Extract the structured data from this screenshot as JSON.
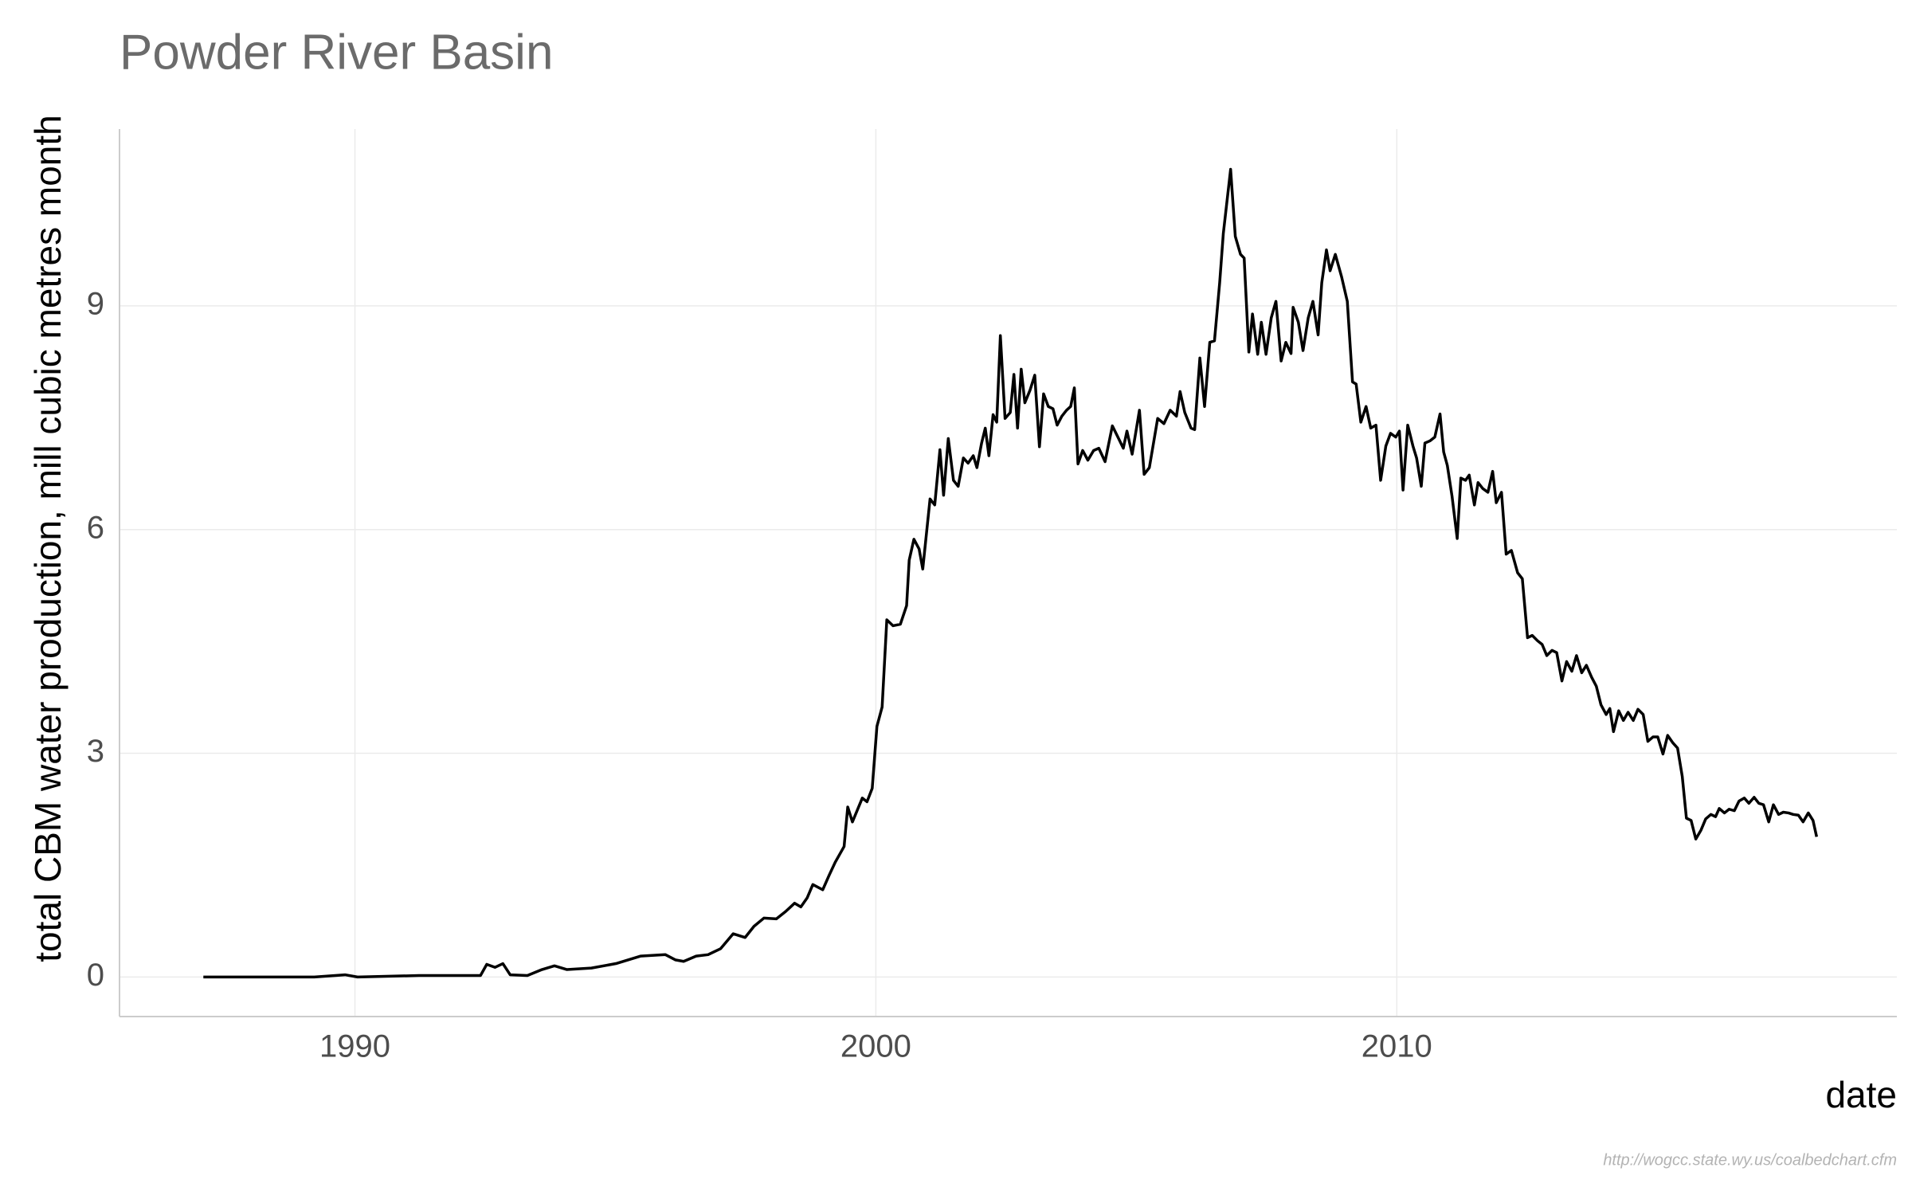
{
  "chart_data": {
    "type": "line",
    "title": "Powder River Basin",
    "x_label": "date",
    "y_label": "total CBM water production, mill cubic metres month",
    "caption": "http://wogcc.state.wy.us/coalbedchart.cfm",
    "color": "#000000",
    "grid": true,
    "xlim": [
      1985.48,
      2019.6
    ],
    "ylim": [
      -0.53,
      11.37
    ],
    "xticks": [
      1990,
      2000,
      2010
    ],
    "yticks": [
      0,
      3,
      6,
      9
    ],
    "x": [
      1987.09,
      1989.22,
      1989.81,
      1990.05,
      1991.23,
      1992.41,
      1992.53,
      1992.69,
      1992.84,
      1992.98,
      1993.31,
      1993.59,
      1993.83,
      1994.07,
      1994.54,
      1995.01,
      1995.48,
      1995.96,
      1996.15,
      1996.31,
      1996.55,
      1996.78,
      1997.02,
      1997.26,
      1997.49,
      1997.66,
      1997.85,
      1998.09,
      1998.27,
      1998.44,
      1998.56,
      1998.68,
      1998.79,
      1998.98,
      1999.1,
      1999.22,
      1999.39,
      1999.46,
      1999.55,
      1999.74,
      1999.83,
      1999.93,
      2000.02,
      2000.12,
      2000.21,
      2000.33,
      2000.47,
      2000.59,
      2000.64,
      2000.73,
      2000.83,
      2000.9,
      2001.04,
      2001.13,
      2001.23,
      2001.3,
      2001.39,
      2001.49,
      2001.58,
      2001.68,
      2001.77,
      2001.87,
      2001.94,
      2002.03,
      2002.1,
      2002.17,
      2002.25,
      2002.32,
      2002.39,
      2002.48,
      2002.58,
      2002.65,
      2002.72,
      2002.79,
      2002.86,
      2002.96,
      2003.05,
      2003.14,
      2003.22,
      2003.31,
      2003.4,
      2003.48,
      2003.57,
      2003.66,
      2003.74,
      2003.81,
      2003.88,
      2003.97,
      2004.07,
      2004.18,
      2004.28,
      2004.4,
      2004.54,
      2004.66,
      2004.75,
      2004.82,
      2004.92,
      2005.06,
      2005.15,
      2005.25,
      2005.41,
      2005.53,
      2005.65,
      2005.77,
      2005.84,
      2005.93,
      2006.05,
      2006.12,
      2006.22,
      2006.31,
      2006.41,
      2006.5,
      2006.6,
      2006.67,
      2006.81,
      2006.9,
      2007,
      2007.07,
      2007.16,
      2007.23,
      2007.33,
      2007.4,
      2007.49,
      2007.59,
      2007.68,
      2007.78,
      2007.87,
      2007.97,
      2008.01,
      2008.11,
      2008.2,
      2008.3,
      2008.39,
      2008.49,
      2008.56,
      2008.65,
      2008.72,
      2008.82,
      2008.94,
      2009.05,
      2009.15,
      2009.22,
      2009.31,
      2009.41,
      2009.5,
      2009.6,
      2009.69,
      2009.79,
      2009.88,
      2009.98,
      2010.05,
      2010.12,
      2010.21,
      2010.31,
      2010.38,
      2010.47,
      2010.54,
      2010.64,
      2010.73,
      2010.83,
      2010.9,
      2010.97,
      2011.06,
      2011.16,
      2011.23,
      2011.32,
      2011.39,
      2011.49,
      2011.56,
      2011.65,
      2011.75,
      2011.84,
      2011.91,
      2012.01,
      2012.1,
      2012.2,
      2012.32,
      2012.41,
      2012.51,
      2012.6,
      2012.7,
      2012.79,
      2012.88,
      2012.98,
      2013.07,
      2013.17,
      2013.26,
      2013.36,
      2013.45,
      2013.55,
      2013.64,
      2013.74,
      2013.83,
      2013.92,
      2014.02,
      2014.09,
      2014.16,
      2014.26,
      2014.35,
      2014.44,
      2014.54,
      2014.63,
      2014.73,
      2014.82,
      2014.92,
      2015.01,
      2015.11,
      2015.2,
      2015.3,
      2015.39,
      2015.48,
      2015.56,
      2015.65,
      2015.74,
      2015.84,
      2015.93,
      2016.03,
      2016.12,
      2016.19,
      2016.29,
      2016.38,
      2016.48,
      2016.57,
      2016.67,
      2016.76,
      2016.86,
      2016.95,
      2017.04,
      2017.14,
      2017.23,
      2017.33,
      2017.42,
      2017.52,
      2017.61,
      2017.71,
      2017.8,
      2017.9,
      2017.99,
      2018.06
    ],
    "values": [
      0,
      0,
      0.03,
      0,
      0.02,
      0.02,
      0.17,
      0.13,
      0.18,
      0.03,
      0.02,
      0.1,
      0.15,
      0.1,
      0.12,
      0.18,
      0.28,
      0.3,
      0.23,
      0.21,
      0.28,
      0.3,
      0.38,
      0.58,
      0.53,
      0.68,
      0.79,
      0.78,
      0.88,
      0.99,
      0.94,
      1.06,
      1.24,
      1.17,
      1.36,
      1.54,
      1.75,
      2.28,
      2.08,
      2.4,
      2.35,
      2.53,
      3.36,
      3.62,
      4.79,
      4.71,
      4.73,
      4.98,
      5.59,
      5.87,
      5.74,
      5.47,
      6.41,
      6.33,
      7.07,
      6.46,
      7.22,
      6.66,
      6.58,
      6.96,
      6.89,
      6.99,
      6.83,
      7.16,
      7.36,
      6.99,
      7.54,
      7.44,
      8.6,
      7.49,
      7.57,
      8.08,
      7.36,
      8.15,
      7.7,
      7.87,
      8.07,
      7.11,
      7.82,
      7.65,
      7.62,
      7.4,
      7.52,
      7.6,
      7.65,
      7.9,
      6.88,
      7.06,
      6.93,
      7.06,
      7.09,
      6.91,
      7.39,
      7.22,
      7.09,
      7.32,
      7.01,
      7.6,
      6.74,
      6.83,
      7.49,
      7.42,
      7.6,
      7.52,
      7.85,
      7.57,
      7.36,
      7.34,
      8.3,
      7.65,
      8.51,
      8.53,
      9.31,
      9.97,
      10.83,
      9.93,
      9.69,
      9.64,
      8.38,
      8.89,
      8.35,
      8.78,
      8.35,
      8.84,
      9.06,
      8.26,
      8.51,
      8.36,
      8.98,
      8.78,
      8.4,
      8.84,
      9.06,
      8.61,
      9.31,
      9.75,
      9.47,
      9.69,
      9.39,
      9.06,
      7.98,
      7.95,
      7.44,
      7.65,
      7.36,
      7.4,
      6.66,
      7.12,
      7.29,
      7.24,
      7.32,
      6.53,
      7.4,
      7.12,
      6.96,
      6.58,
      7.16,
      7.19,
      7.24,
      7.55,
      7.04,
      6.86,
      6.45,
      5.88,
      6.69,
      6.66,
      6.73,
      6.33,
      6.63,
      6.55,
      6.5,
      6.78,
      6.36,
      6.5,
      5.67,
      5.72,
      5.42,
      5.34,
      4.55,
      4.58,
      4.51,
      4.46,
      4.31,
      4.38,
      4.35,
      3.97,
      4.23,
      4.1,
      4.31,
      4.08,
      4.18,
      4.02,
      3.9,
      3.65,
      3.52,
      3.6,
      3.29,
      3.57,
      3.44,
      3.55,
      3.44,
      3.59,
      3.52,
      3.16,
      3.22,
      3.22,
      2.99,
      3.24,
      3.14,
      3.07,
      2.69,
      2.13,
      2.1,
      1.85,
      1.97,
      2.12,
      2.18,
      2.15,
      2.26,
      2.2,
      2.25,
      2.23,
      2.36,
      2.4,
      2.33,
      2.41,
      2.33,
      2.31,
      2.08,
      2.31,
      2.18,
      2.21,
      2.2,
      2.18,
      2.17,
      2.08,
      2.2,
      2.1,
      1.88
    ]
  }
}
